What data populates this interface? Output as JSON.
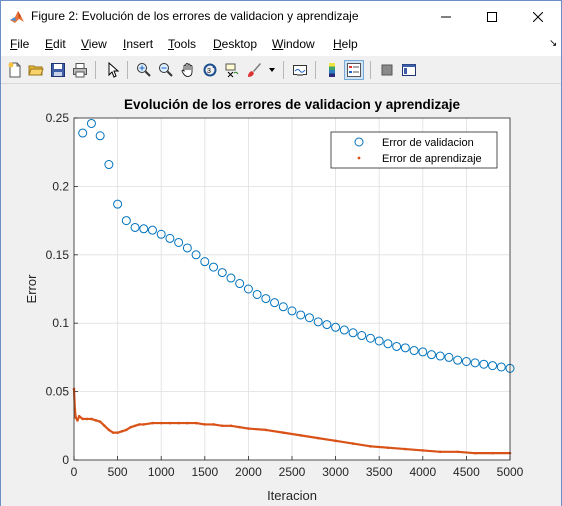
{
  "window": {
    "title": "Figure 2: Evolución de los errores de validacion y aprendizaje"
  },
  "menu": [
    {
      "label": "File",
      "u": "F",
      "rest": "ile"
    },
    {
      "label": "Edit",
      "u": "E",
      "rest": "dit"
    },
    {
      "label": "View",
      "u": "V",
      "rest": "iew"
    },
    {
      "label": "Insert",
      "u": "I",
      "rest": "nsert"
    },
    {
      "label": "Tools",
      "u": "T",
      "rest": "ools"
    },
    {
      "label": "Desktop",
      "u": "D",
      "rest": "esktop"
    },
    {
      "label": "Window",
      "u": "W",
      "rest": "indow"
    },
    {
      "label": "Help",
      "u": "H",
      "rest": "elp"
    }
  ],
  "toolbar": [
    "new-figure-icon",
    "open-file-icon",
    "save-icon",
    "print-icon",
    "edit-plot-arrow-icon",
    "zoom-in-icon",
    "zoom-out-icon",
    "pan-hand-icon",
    "rotate-3d-icon",
    "data-cursor-icon",
    "brush-icon",
    "brush-dropdown-icon",
    "link-plot-icon",
    "colorbar-icon",
    "legend-icon",
    "hide-plot-tools-icon",
    "show-plot-tools-icon"
  ],
  "chart_data": {
    "type": "scatter",
    "title": "Evolución de los errores de validacion y aprendizaje",
    "xlabel": "Iteracion",
    "ylabel": "Error",
    "xlim": [
      0,
      5000
    ],
    "ylim": [
      0,
      0.25
    ],
    "xticks": [
      "0",
      "500",
      "1000",
      "1500",
      "2000",
      "2500",
      "3000",
      "3500",
      "4000",
      "4500",
      "5000"
    ],
    "yticks": [
      "0",
      "0.05",
      "0.1",
      "0.15",
      "0.2",
      "0.25"
    ],
    "grid": true,
    "legend_position": "top-right",
    "series": [
      {
        "name": "Error de validacion",
        "marker": "circle",
        "color": "#0072bd",
        "x": [
          100,
          200,
          300,
          400,
          500,
          600,
          700,
          800,
          900,
          1000,
          1100,
          1200,
          1300,
          1400,
          1500,
          1600,
          1700,
          1800,
          1900,
          2000,
          2100,
          2200,
          2300,
          2400,
          2500,
          2600,
          2700,
          2800,
          2900,
          3000,
          3100,
          3200,
          3300,
          3400,
          3500,
          3600,
          3700,
          3800,
          3900,
          4000,
          4100,
          4200,
          4300,
          4400,
          4500,
          4600,
          4700,
          4800,
          4900,
          5000
        ],
        "y": [
          0.239,
          0.246,
          0.237,
          0.216,
          0.187,
          0.175,
          0.17,
          0.169,
          0.168,
          0.165,
          0.162,
          0.159,
          0.155,
          0.15,
          0.145,
          0.141,
          0.137,
          0.133,
          0.129,
          0.125,
          0.121,
          0.118,
          0.115,
          0.112,
          0.109,
          0.106,
          0.104,
          0.101,
          0.099,
          0.097,
          0.095,
          0.093,
          0.091,
          0.089,
          0.087,
          0.085,
          0.083,
          0.082,
          0.08,
          0.079,
          0.077,
          0.076,
          0.075,
          0.073,
          0.072,
          0.071,
          0.07,
          0.069,
          0.068,
          0.067
        ]
      },
      {
        "name": "Error de aprendizaje",
        "marker": "dot",
        "color": "#d95319",
        "x": [
          0,
          10,
          20,
          40,
          60,
          100,
          150,
          200,
          250,
          300,
          350,
          400,
          450,
          500,
          550,
          600,
          650,
          700,
          750,
          800,
          900,
          1000,
          1100,
          1200,
          1300,
          1400,
          1500,
          1600,
          1700,
          1800,
          1900,
          2000,
          2200,
          2400,
          2600,
          2800,
          3000,
          3200,
          3400,
          3600,
          3800,
          4000,
          4200,
          4400,
          4600,
          4800,
          5000
        ],
        "y": [
          0.052,
          0.037,
          0.031,
          0.029,
          0.032,
          0.03,
          0.03,
          0.03,
          0.029,
          0.028,
          0.025,
          0.022,
          0.02,
          0.02,
          0.021,
          0.022,
          0.024,
          0.025,
          0.026,
          0.026,
          0.027,
          0.027,
          0.027,
          0.027,
          0.027,
          0.027,
          0.026,
          0.026,
          0.025,
          0.025,
          0.024,
          0.023,
          0.022,
          0.02,
          0.018,
          0.016,
          0.014,
          0.012,
          0.01,
          0.009,
          0.008,
          0.007,
          0.006,
          0.006,
          0.005,
          0.005,
          0.005
        ]
      }
    ]
  }
}
